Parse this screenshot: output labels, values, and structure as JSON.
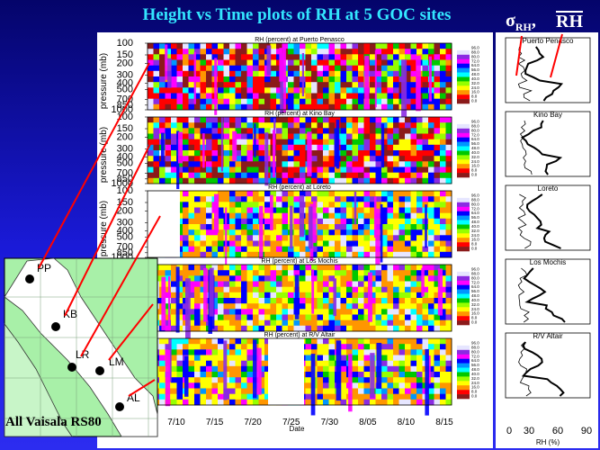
{
  "title": "Height vs Time plots of RH at 5 GOC sites",
  "legend_sigma": "σ",
  "legend_sigma_sub": "RH",
  "legend_sep": ",",
  "legend_mean": "RH",
  "chart_data": {
    "type": "heatmap",
    "ylabel": "pressure (mb)",
    "xlabel": "Date",
    "x_ticks": [
      "7/10",
      "7/15",
      "7/20",
      "7/25",
      "7/30",
      "8/05",
      "8/10",
      "8/15"
    ],
    "y_ticks": [
      "100",
      "150",
      "200",
      "300",
      "400",
      "500",
      "700",
      "850",
      "1000"
    ],
    "colorbar_ticks": [
      "96.0",
      "88.0",
      "80.0",
      "72.0",
      "64.0",
      "56.0",
      "48.0",
      "40.0",
      "32.0",
      "24.0",
      "16.0",
      "8.0",
      "0.0"
    ],
    "colorbar_colors": [
      "#ffffff",
      "#e6e6ff",
      "#8a2be2",
      "#ff00ff",
      "#0000ff",
      "#0096ff",
      "#00ffff",
      "#00c800",
      "#96ff00",
      "#ffff00",
      "#ff9600",
      "#ff0000",
      "#8b1a1a"
    ],
    "panels": [
      {
        "title": "RH (percent) at Puerto Penasco",
        "site": "PP",
        "profile_title": "Puerto Penasco"
      },
      {
        "title": "RH (percent) at Kino Bay",
        "site": "KB",
        "profile_title": "Kino Bay"
      },
      {
        "title": "RH (percent) at Loreto",
        "site": "LR",
        "profile_title": "Loreto"
      },
      {
        "title": "RH (percent) at Los Mochis",
        "site": "LM",
        "profile_title": "Los Mochis"
      },
      {
        "title": "RH (percent) at R/V Altair",
        "site": "AL",
        "profile_title": "R/V Altair"
      }
    ],
    "profile_xlabel": "RH (%)",
    "profile_x_ticks": [
      "0",
      "30",
      "60",
      "90"
    ]
  },
  "map": {
    "sites": [
      "PP",
      "KB",
      "LR",
      "LM",
      "AL"
    ],
    "caption": "All Vaisala RS80"
  }
}
